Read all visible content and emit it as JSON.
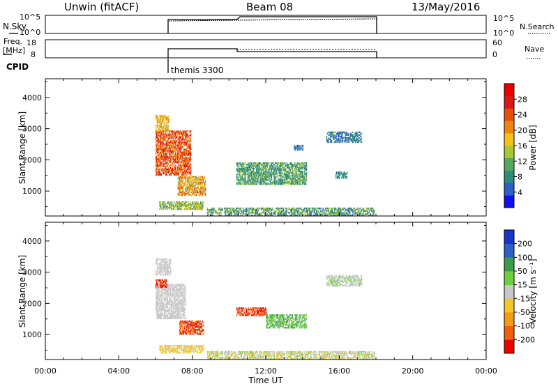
{
  "header": {
    "site": "Unwin (fitACF)",
    "beam": "Beam 08",
    "date": "13/May/2016"
  },
  "status_panels": {
    "nsky": {
      "label": "N.Sky",
      "ticks_left": [
        "10^5",
        "10^0"
      ]
    },
    "nsearch": {
      "label": "N.Search",
      "ticks_right": [
        "10^5",
        "10^0"
      ]
    },
    "freq": {
      "label_line1": "Freq.",
      "label_line2": "[MHz]",
      "ticks_left": [
        "18",
        "8"
      ]
    },
    "nave": {
      "label": "Nave",
      "ticks_right": [
        "60",
        "0"
      ]
    },
    "cpid": {
      "label": "CPID",
      "program": "themis 3300"
    }
  },
  "colors": {
    "power": [
      "#1010ee",
      "#2e5fc6",
      "#2c8c79",
      "#57a65f",
      "#a9c72e",
      "#f2c21a",
      "#f0860f",
      "#e6500d",
      "#dd1616",
      "#e70000"
    ],
    "velocity": [
      "#ee0000",
      "#f0600a",
      "#f59a14",
      "#f3c72c",
      "#c8c8c8",
      "#6ccf3c",
      "#3a9c48",
      "#2e5fc6",
      "#1a33c8"
    ]
  },
  "chart_data": [
    {
      "type": "heatmap",
      "name": "power",
      "xlabel": "",
      "ylabel": "Slant Range [km]",
      "xlim": [
        0,
        24
      ],
      "ylim": [
        200,
        4600
      ],
      "yticks": [
        1000,
        2000,
        3000,
        4000
      ],
      "colorbar": {
        "label": "Power [dB]",
        "ticks": [
          "4",
          "8",
          "12",
          "16",
          "20",
          "24",
          "28"
        ],
        "range": [
          0,
          32
        ]
      },
      "regions": [
        {
          "t": [
            6.0,
            7.9
          ],
          "r": [
            1500,
            2900
          ],
          "v": [
            18,
            30
          ]
        },
        {
          "t": [
            6.0,
            6.7
          ],
          "r": [
            2900,
            3400
          ],
          "v": [
            14,
            22
          ]
        },
        {
          "t": [
            7.2,
            8.7
          ],
          "r": [
            850,
            1450
          ],
          "v": [
            12,
            26
          ]
        },
        {
          "t": [
            6.2,
            8.6
          ],
          "r": [
            400,
            650
          ],
          "v": [
            8,
            18
          ]
        },
        {
          "t": [
            10.4,
            14.2
          ],
          "r": [
            1200,
            1900
          ],
          "v": [
            6,
            14
          ]
        },
        {
          "t": [
            15.3,
            17.2
          ],
          "r": [
            2550,
            2900
          ],
          "v": [
            4,
            10
          ]
        },
        {
          "t": [
            13.5,
            14.0
          ],
          "r": [
            2300,
            2450
          ],
          "v": [
            4,
            8
          ]
        },
        {
          "t": [
            15.8,
            16.4
          ],
          "r": [
            1400,
            1600
          ],
          "v": [
            6,
            10
          ]
        },
        {
          "t": [
            8.8,
            17.9
          ],
          "r": [
            200,
            450
          ],
          "v": [
            4,
            16
          ]
        }
      ]
    },
    {
      "type": "heatmap",
      "name": "velocity",
      "xlabel": "Time UT",
      "ylabel": "Slant Range [km]",
      "xlim": [
        0,
        24
      ],
      "ylim": [
        200,
        4600
      ],
      "xticks": [
        "00:00",
        "04:00",
        "08:00",
        "12:00",
        "16:00",
        "20:00",
        "00:00"
      ],
      "yticks": [
        1000,
        2000,
        3000,
        4000
      ],
      "colorbar": {
        "label": "Velocity [m s⁻¹]",
        "ticks": [
          "-200",
          "-100",
          "-50",
          "-15",
          "15",
          "50",
          "100",
          "200"
        ],
        "range": [
          -250,
          250
        ]
      },
      "regions": [
        {
          "t": [
            6.0,
            7.6
          ],
          "r": [
            1500,
            2600
          ],
          "v": [
            -15,
            15
          ]
        },
        {
          "t": [
            6.0,
            6.6
          ],
          "r": [
            2500,
            2750
          ],
          "v": [
            -250,
            -150
          ]
        },
        {
          "t": [
            6.0,
            6.8
          ],
          "r": [
            2900,
            3400
          ],
          "v": [
            -15,
            15
          ]
        },
        {
          "t": [
            7.3,
            8.6
          ],
          "r": [
            1000,
            1450
          ],
          "v": [
            -250,
            -120
          ]
        },
        {
          "t": [
            6.2,
            8.6
          ],
          "r": [
            400,
            650
          ],
          "v": [
            -60,
            -20
          ]
        },
        {
          "t": [
            10.4,
            12.0
          ],
          "r": [
            1600,
            1850
          ],
          "v": [
            -250,
            -120
          ]
        },
        {
          "t": [
            12.0,
            14.2
          ],
          "r": [
            1200,
            1650
          ],
          "v": [
            10,
            120
          ]
        },
        {
          "t": [
            15.3,
            17.2
          ],
          "r": [
            2550,
            2900
          ],
          "v": [
            -15,
            40
          ]
        },
        {
          "t": [
            8.8,
            17.9
          ],
          "r": [
            200,
            450
          ],
          "v": [
            -60,
            50
          ]
        }
      ]
    }
  ]
}
